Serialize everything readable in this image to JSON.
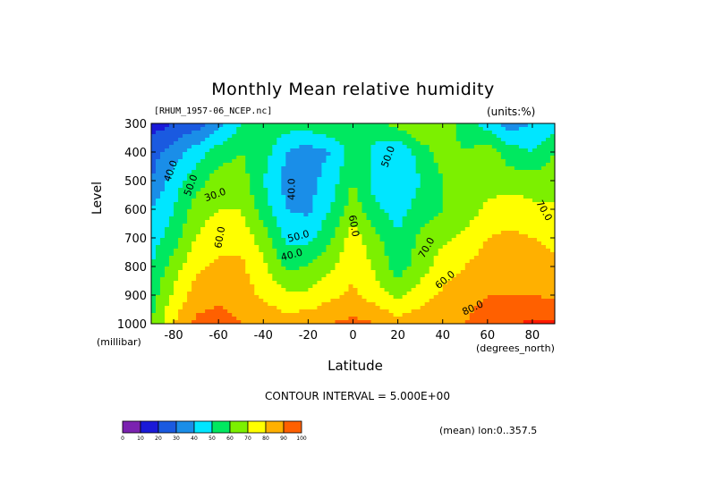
{
  "title": "Monthly Mean relative humidity",
  "source_file": "[RHUM_1957-06_NCEP.nc]",
  "units": "(units:%)",
  "contour_interval": "CONTOUR INTERVAL = 5.000E+00",
  "mean_note": "(mean) lon:0..357.5",
  "colors": [
    "#7b22b0",
    "#1a1ad8",
    "#1a5ae0",
    "#1a8ee8",
    "#00e6ff",
    "#00e860",
    "#7cf000",
    "#ffff00",
    "#ffb000",
    "#ff6000",
    "#ff1a00"
  ],
  "colorbar": {
    "labels": [
      "0",
      "10",
      "20",
      "30",
      "40",
      "50",
      "60",
      "70",
      "80",
      "90",
      "100"
    ]
  },
  "chart_data": {
    "type": "heatmap",
    "title": "Monthly Mean relative humidity",
    "xlabel": "Latitude",
    "xunit": "(degrees_north)",
    "ylabel": "Level",
    "yunit": "(millibar)",
    "xlim": [
      -90,
      90
    ],
    "ylim": [
      1000,
      300
    ],
    "x_ticks": [
      -80,
      -60,
      -40,
      -20,
      0,
      20,
      40,
      60,
      80
    ],
    "x_tick_labels": [
      "-80",
      "-60",
      "-40",
      "-20",
      "0",
      "20",
      "40",
      "60",
      "80"
    ],
    "y_ticks": [
      300,
      400,
      500,
      600,
      700,
      800,
      900,
      1000
    ],
    "y_tick_labels": [
      "300",
      "400",
      "500",
      "600",
      "700",
      "800",
      "900",
      "1000"
    ],
    "contour_interval": 5,
    "contour_labels": [
      "40.0",
      "50.0",
      "60.0",
      "30.0",
      "40.0",
      "50.0",
      "40.0",
      "60.0",
      "50.0",
      "70.0",
      "60.0",
      "70.0",
      "80.0"
    ],
    "levels": [
      300,
      400,
      500,
      600,
      700,
      800,
      900,
      1000
    ],
    "latitudes": [
      -90,
      -80,
      -70,
      -60,
      -50,
      -40,
      -30,
      -20,
      -10,
      0,
      10,
      20,
      30,
      40,
      50,
      60,
      70,
      80,
      90
    ],
    "values": [
      [
        5,
        10,
        15,
        25,
        40,
        50,
        45,
        45,
        50,
        50,
        45,
        55,
        60,
        55,
        45,
        35,
        25,
        30,
        35
      ],
      [
        15,
        25,
        35,
        45,
        50,
        45,
        30,
        25,
        30,
        45,
        38,
        30,
        45,
        55,
        50,
        55,
        45,
        40,
        50
      ],
      [
        20,
        35,
        45,
        55,
        55,
        40,
        27,
        26,
        35,
        50,
        36,
        30,
        40,
        50,
        55,
        55,
        55,
        55,
        55
      ],
      [
        30,
        40,
        55,
        60,
        60,
        45,
        30,
        28,
        40,
        55,
        42,
        35,
        45,
        50,
        55,
        62,
        66,
        62,
        62
      ],
      [
        35,
        45,
        60,
        67,
        67,
        55,
        38,
        37,
        48,
        65,
        53,
        42,
        52,
        58,
        62,
        70,
        72,
        70,
        68
      ],
      [
        40,
        55,
        68,
        72,
        72,
        62,
        48,
        50,
        58,
        68,
        58,
        45,
        55,
        65,
        70,
        75,
        75,
        75,
        72
      ],
      [
        45,
        62,
        75,
        78,
        75,
        68,
        62,
        62,
        68,
        72,
        65,
        57,
        65,
        72,
        75,
        80,
        80,
        80,
        78
      ],
      [
        50,
        70,
        82,
        84,
        80,
        78,
        75,
        77,
        80,
        83,
        80,
        75,
        77,
        78,
        80,
        87,
        88,
        92,
        92
      ]
    ]
  }
}
